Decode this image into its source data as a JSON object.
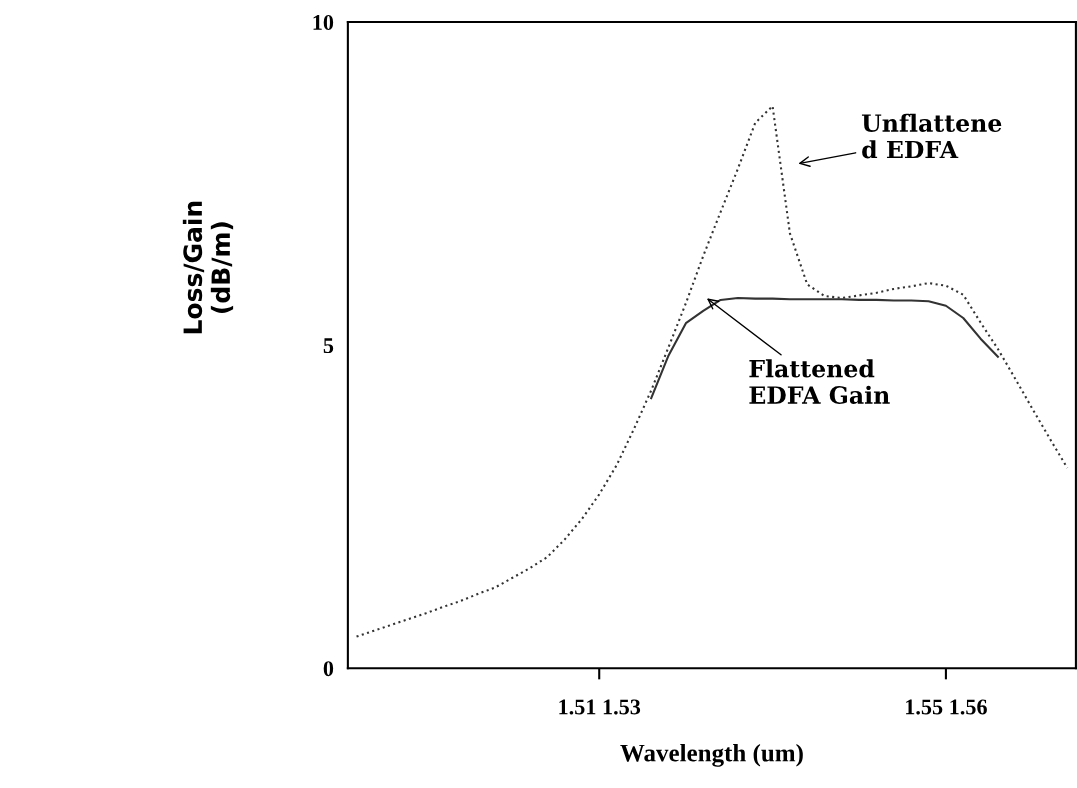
{
  "chart_data": {
    "type": "line",
    "xlabel": "Wavelength (um)",
    "ylabel": "Loss/Gain\n(dB/m)",
    "categories": [
      null,
      null,
      null,
      null,
      null,
      null,
      null,
      null,
      null,
      null,
      null,
      null,
      null,
      null,
      "1.51 1.53",
      null,
      null,
      null,
      null,
      null,
      null,
      null,
      null,
      null,
      null,
      null,
      null,
      null,
      null,
      null,
      null,
      null,
      null,
      null,
      "1.55 1.56",
      null,
      null,
      null,
      null,
      null,
      null,
      null
    ],
    "ylim": [
      0,
      10
    ],
    "yticks": [
      0,
      5,
      10
    ],
    "grid": false,
    "legend": false,
    "series": [
      {
        "color": "#333333",
        "line_style": "dotted",
        "values": [
          0.49,
          0.58,
          0.67,
          0.76,
          0.85,
          0.95,
          1.04,
          1.15,
          1.25,
          1.4,
          1.55,
          1.72,
          1.99,
          2.31,
          2.69,
          3.14,
          3.7,
          4.3,
          4.97,
          5.65,
          6.38,
          7.06,
          7.73,
          8.44,
          8.7,
          6.73,
          5.94,
          5.76,
          5.73,
          5.77,
          5.81,
          5.87,
          5.91,
          5.96,
          5.92,
          5.78,
          5.35,
          4.94,
          4.48,
          4.01,
          3.55,
          3.1
        ]
      },
      {
        "color": "#333333",
        "line_style": "solid",
        "values": [
          null,
          null,
          null,
          null,
          null,
          null,
          null,
          null,
          null,
          null,
          null,
          null,
          null,
          null,
          null,
          null,
          null,
          4.18,
          4.84,
          5.34,
          5.53,
          5.7,
          5.73,
          5.72,
          5.72,
          5.71,
          5.71,
          5.71,
          5.71,
          5.7,
          5.7,
          5.69,
          5.69,
          5.68,
          5.61,
          5.42,
          5.1,
          4.82,
          null,
          null,
          null,
          null
        ]
      }
    ],
    "annotations": [
      "Unflattene\nd EDFA",
      "Flattened\nEDFA Gain"
    ]
  }
}
